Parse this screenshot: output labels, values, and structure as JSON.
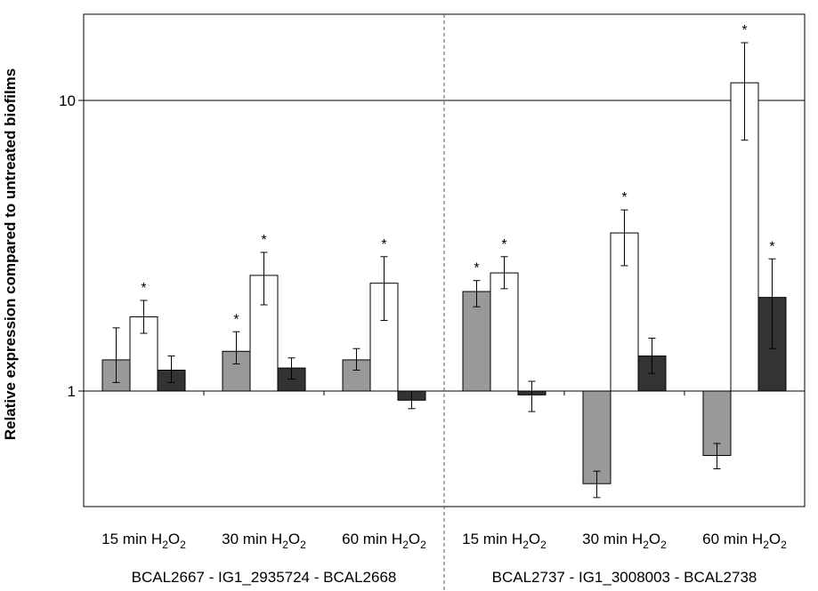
{
  "chart_data": {
    "type": "bar",
    "ylabel": "Relative expression compared to untreated biofilms",
    "yscale": "log",
    "ylim": [
      0.4,
      20
    ],
    "yticks": [
      {
        "value": 1,
        "label": "1"
      },
      {
        "value": 10,
        "label": "10"
      }
    ],
    "grid": "horizontal lines at 1 and 10",
    "categories": [
      {
        "prefix": "15 min H",
        "sub1": "2",
        "mid": "O",
        "sub2": "2"
      },
      {
        "prefix": "30 min H",
        "sub1": "2",
        "mid": "O",
        "sub2": "2"
      },
      {
        "prefix": "60 min H",
        "sub1": "2",
        "mid": "O",
        "sub2": "2"
      },
      {
        "prefix": "15 min H",
        "sub1": "2",
        "mid": "O",
        "sub2": "2"
      },
      {
        "prefix": "30 min H",
        "sub1": "2",
        "mid": "O",
        "sub2": "2"
      },
      {
        "prefix": "60 min H",
        "sub1": "2",
        "mid": "O",
        "sub2": "2"
      }
    ],
    "groups": [
      {
        "label": "BCAL2667 - IG1_2935724 - BCAL2668",
        "categories": [
          0,
          1,
          2
        ]
      },
      {
        "label": "BCAL2737 - IG1_3008003 - BCAL2738",
        "categories": [
          3,
          4,
          5
        ]
      }
    ],
    "series": [
      {
        "color": "#999999",
        "values": [
          1.28,
          1.37,
          1.28,
          2.2,
          0.48,
          0.6
        ],
        "err_low": [
          1.07,
          1.24,
          1.18,
          1.95,
          0.43,
          0.54
        ],
        "err_high": [
          1.65,
          1.6,
          1.4,
          2.4,
          0.53,
          0.66
        ],
        "significant": [
          false,
          true,
          false,
          true,
          false,
          false
        ]
      },
      {
        "color": "#ffffff",
        "values": [
          1.8,
          2.5,
          2.35,
          2.55,
          3.5,
          11.5
        ],
        "err_low": [
          1.58,
          1.98,
          1.75,
          2.25,
          2.7,
          7.3
        ],
        "err_high": [
          2.05,
          3.0,
          2.9,
          2.9,
          4.2,
          15.8
        ],
        "significant": [
          true,
          true,
          true,
          true,
          true,
          true
        ]
      },
      {
        "color": "#333333",
        "values": [
          1.18,
          1.2,
          0.93,
          0.97,
          1.32,
          2.1
        ],
        "err_low": [
          1.07,
          1.1,
          0.87,
          0.85,
          1.15,
          1.4
        ],
        "err_high": [
          1.32,
          1.3,
          1.0,
          1.08,
          1.52,
          2.85
        ],
        "significant": [
          false,
          false,
          false,
          false,
          false,
          true
        ]
      }
    ],
    "significance_marker": "*"
  }
}
